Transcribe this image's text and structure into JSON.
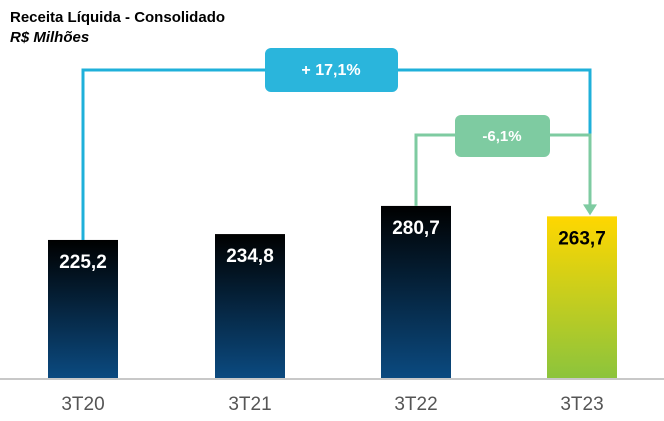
{
  "chart_data": {
    "type": "bar",
    "title": "Receita Líquida - Consolidado",
    "subtitle": "R$ Milhões",
    "categories": [
      "3T20",
      "3T21",
      "3T22",
      "3T23"
    ],
    "values": [
      225.2,
      234.8,
      280.7,
      263.7
    ],
    "value_labels": [
      "225,2",
      "234,8",
      "280,7",
      "263,7"
    ],
    "colors": [
      [
        "#000000",
        "#0b4a80"
      ],
      [
        "#000000",
        "#0b4a80"
      ],
      [
        "#000000",
        "#0b4a80"
      ],
      [
        "#ffd700",
        "#8cc43c"
      ]
    ],
    "annotations": [
      "+ 17,1%",
      "-6,1%"
    ]
  }
}
